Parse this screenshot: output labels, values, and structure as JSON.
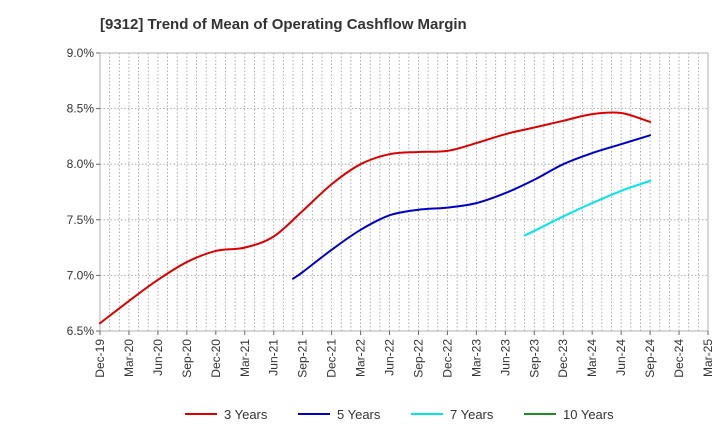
{
  "chart_data": {
    "type": "line",
    "title": "[9312]  Trend of Mean of Operating Cashflow Margin",
    "xlabel": "",
    "ylabel": "",
    "y_ticks": [
      "6.5%",
      "7.0%",
      "7.5%",
      "8.0%",
      "8.5%",
      "9.0%"
    ],
    "ylim": [
      6.5,
      9.0
    ],
    "x_ticks": [
      "Dec-19",
      "Mar-20",
      "Jun-20",
      "Sep-20",
      "Dec-20",
      "Mar-21",
      "Jun-21",
      "Sep-21",
      "Dec-21",
      "Mar-22",
      "Jun-22",
      "Sep-22",
      "Dec-22",
      "Mar-23",
      "Jun-23",
      "Sep-23",
      "Dec-23",
      "Mar-24",
      "Jun-24",
      "Sep-24",
      "Dec-24",
      "Mar-25"
    ],
    "xlim": [
      "Dec-19",
      "Mar-25"
    ],
    "grid": "dotted vertical monthly and horizontal",
    "legend_position": "bottom",
    "series": [
      {
        "name": "3 Years",
        "color": "#dd0000",
        "points": [
          [
            "Dec-19",
            6.57
          ],
          [
            "Mar-20",
            6.77
          ],
          [
            "Jun-20",
            6.96
          ],
          [
            "Sep-20",
            7.12
          ],
          [
            "Dec-20",
            7.22
          ],
          [
            "Mar-21",
            7.25
          ],
          [
            "Jun-21",
            7.35
          ],
          [
            "Sep-21",
            7.58
          ],
          [
            "Dec-21",
            7.82
          ],
          [
            "Mar-22",
            8.0
          ],
          [
            "Jun-22",
            8.09
          ],
          [
            "Sep-22",
            8.11
          ],
          [
            "Dec-22",
            8.12
          ],
          [
            "Mar-23",
            8.19
          ],
          [
            "Jun-23",
            8.27
          ],
          [
            "Sep-23",
            8.33
          ],
          [
            "Dec-23",
            8.39
          ],
          [
            "Mar-24",
            8.45
          ],
          [
            "Jun-24",
            8.46
          ],
          [
            "Sep-24",
            8.38
          ]
        ]
      },
      {
        "name": "5 Years",
        "color": "#0000cc",
        "points": [
          [
            "Aug-21",
            6.97
          ],
          [
            "Sep-21",
            7.03
          ],
          [
            "Dec-21",
            7.23
          ],
          [
            "Mar-22",
            7.41
          ],
          [
            "Jun-22",
            7.54
          ],
          [
            "Sep-22",
            7.59
          ],
          [
            "Dec-22",
            7.61
          ],
          [
            "Mar-23",
            7.65
          ],
          [
            "Jun-23",
            7.74
          ],
          [
            "Sep-23",
            7.86
          ],
          [
            "Dec-23",
            8.0
          ],
          [
            "Mar-24",
            8.1
          ],
          [
            "Jun-24",
            8.18
          ],
          [
            "Sep-24",
            8.26
          ]
        ]
      },
      {
        "name": "7 Years",
        "color": "#00e5ee",
        "points": [
          [
            "Aug-23",
            7.36
          ],
          [
            "Sep-23",
            7.4
          ],
          [
            "Dec-23",
            7.53
          ],
          [
            "Mar-24",
            7.65
          ],
          [
            "Jun-24",
            7.76
          ],
          [
            "Sep-24",
            7.85
          ]
        ]
      },
      {
        "name": "10 Years",
        "color": "#228b22",
        "points": []
      }
    ]
  }
}
